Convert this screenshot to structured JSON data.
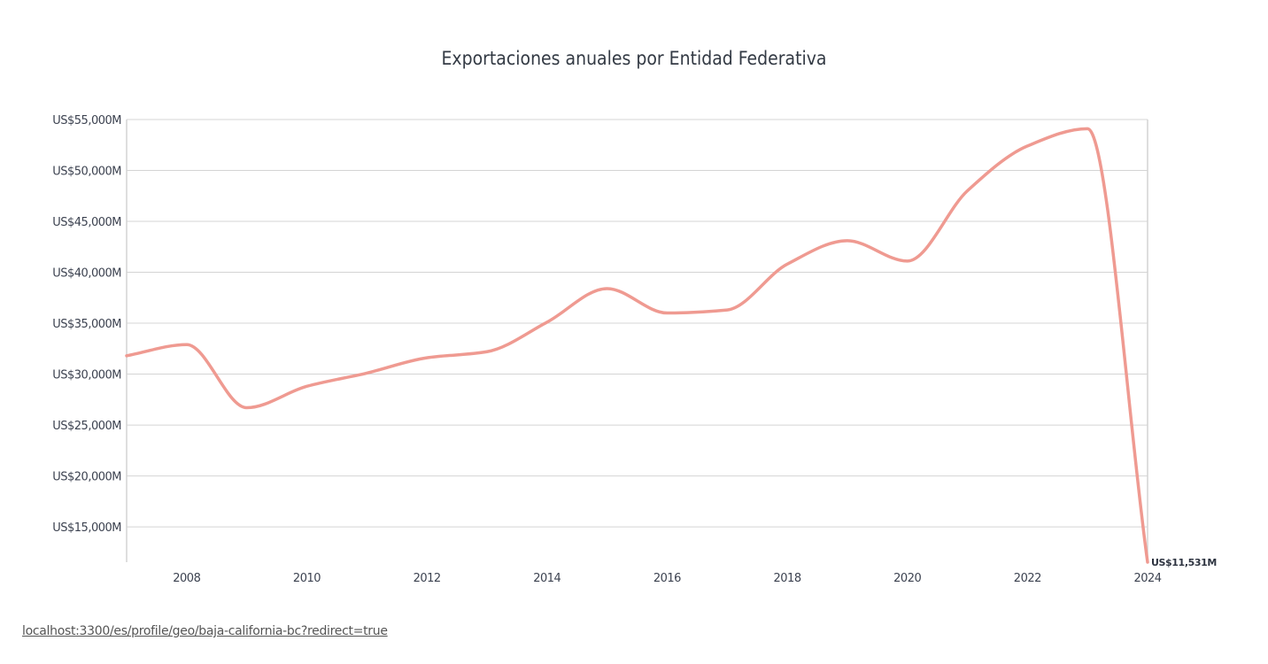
{
  "footer_link": "localhost:3300/es/profile/geo/baja-california-bc?redirect=true",
  "chart_data": {
    "type": "line",
    "title": "Exportaciones anuales por Entidad Federativa",
    "xlabel": "",
    "ylabel": "",
    "x": [
      2007,
      2008,
      2009,
      2010,
      2011,
      2012,
      2013,
      2014,
      2015,
      2016,
      2017,
      2018,
      2019,
      2020,
      2021,
      2022,
      2023,
      2024
    ],
    "values": [
      31800,
      32900,
      26700,
      28800,
      30100,
      31600,
      32200,
      35100,
      38400,
      36000,
      36300,
      40800,
      43100,
      41100,
      48000,
      52400,
      54100,
      11531
    ],
    "xlim": [
      2007,
      2024
    ],
    "ylim": [
      11531,
      55000
    ],
    "x_ticks": [
      "2008",
      "2010",
      "2012",
      "2014",
      "2016",
      "2018",
      "2020",
      "2022",
      "2024"
    ],
    "y_ticks": [
      "US$15,000M",
      "US$20,000M",
      "US$25,000M",
      "US$30,000M",
      "US$35,000M",
      "US$40,000M",
      "US$45,000M",
      "US$50,000M",
      "US$55,000M"
    ],
    "y_tick_values": [
      15000,
      20000,
      25000,
      30000,
      35000,
      40000,
      45000,
      50000,
      55000
    ],
    "last_label": "US$11,531M",
    "grid": true,
    "line_color": "#ef9a91",
    "curve": "monotone"
  }
}
